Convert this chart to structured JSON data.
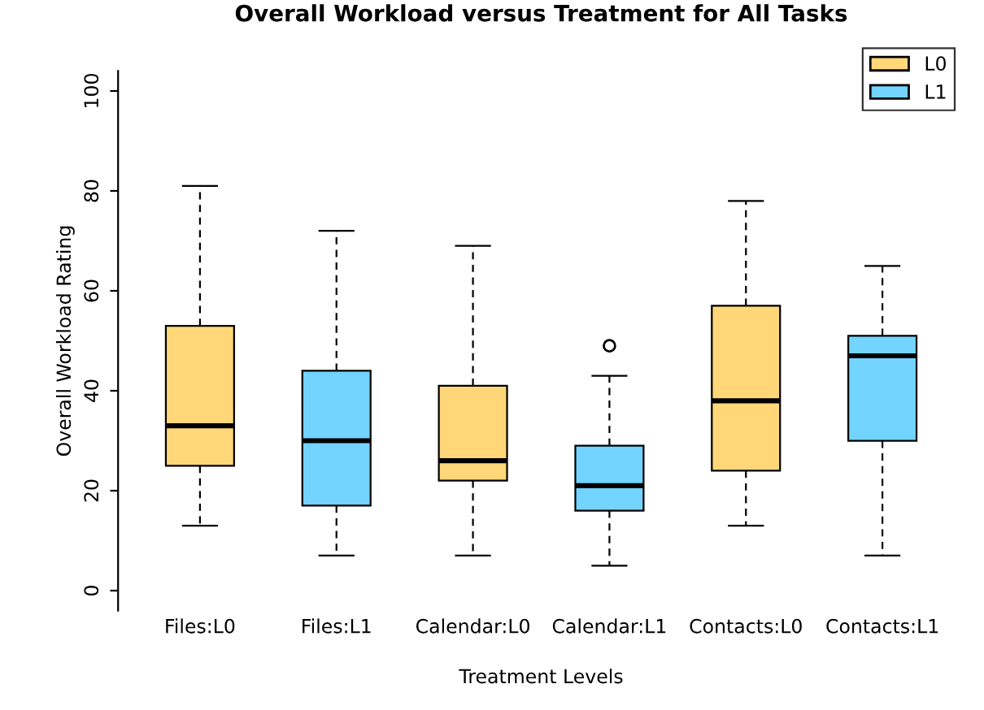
{
  "chart_data": {
    "type": "box",
    "title": "Overall Workload versus Treatment for All Tasks",
    "xlabel": "Treatment Levels",
    "ylabel": "Overall Workload Rating",
    "categories": [
      "Files:L0",
      "Files:L1",
      "Calendar:L0",
      "Calendar:L1",
      "Contacts:L0",
      "Contacts:L1"
    ],
    "series": [
      {
        "name": "L0",
        "color": "#ffd778",
        "boxes": [
          {
            "low": 13,
            "q1": 25,
            "median": 33,
            "q3": 53,
            "high": 81
          },
          null,
          {
            "low": 7,
            "q1": 22,
            "median": 26,
            "q3": 41,
            "high": 69
          },
          null,
          {
            "low": 13,
            "q1": 24,
            "median": 38,
            "q3": 57,
            "high": 78
          },
          null
        ]
      },
      {
        "name": "L1",
        "color": "#73d4ff",
        "boxes": [
          null,
          {
            "low": 7,
            "q1": 17,
            "median": 30,
            "q3": 44,
            "high": 72
          },
          null,
          {
            "low": 5,
            "q1": 16,
            "median": 21,
            "q3": 29,
            "high": 43,
            "outliers": [
              49
            ]
          },
          null,
          {
            "low": 7,
            "q1": 30,
            "median": 47,
            "q3": 51,
            "high": 65
          }
        ]
      }
    ],
    "ylim": [
      -4,
      104
    ],
    "yticks": [
      0,
      20,
      40,
      60,
      80,
      100
    ],
    "grid": false,
    "legend": "top right"
  }
}
